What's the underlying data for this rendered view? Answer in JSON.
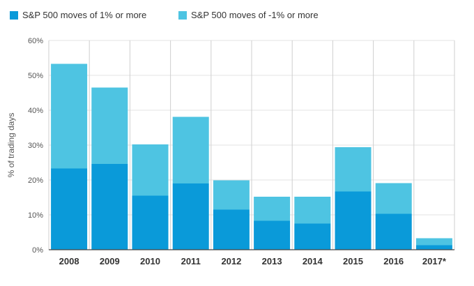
{
  "chart_data": {
    "type": "bar",
    "stacked": true,
    "categories": [
      "2008",
      "2009",
      "2010",
      "2011",
      "2012",
      "2013",
      "2014",
      "2015",
      "2016",
      "2017*"
    ],
    "series": [
      {
        "name": "S&P 500 moves of 1% or more",
        "color": "#0a9ad9",
        "values": [
          23.3,
          24.6,
          15.5,
          19.0,
          11.5,
          8.3,
          7.5,
          16.7,
          10.3,
          1.3
        ]
      },
      {
        "name": "S&P 500 moves of -1% or more",
        "color": "#4ec4e2",
        "values": [
          30.0,
          21.9,
          14.7,
          19.1,
          8.4,
          6.9,
          7.7,
          12.7,
          8.8,
          2.0
        ]
      }
    ],
    "ylabel": "% of trading days",
    "ylim": [
      0,
      60
    ],
    "yticks": [
      "0%",
      "10%",
      "20%",
      "30%",
      "40%",
      "50%",
      "60%"
    ],
    "grid": true,
    "legend": "top-left"
  }
}
